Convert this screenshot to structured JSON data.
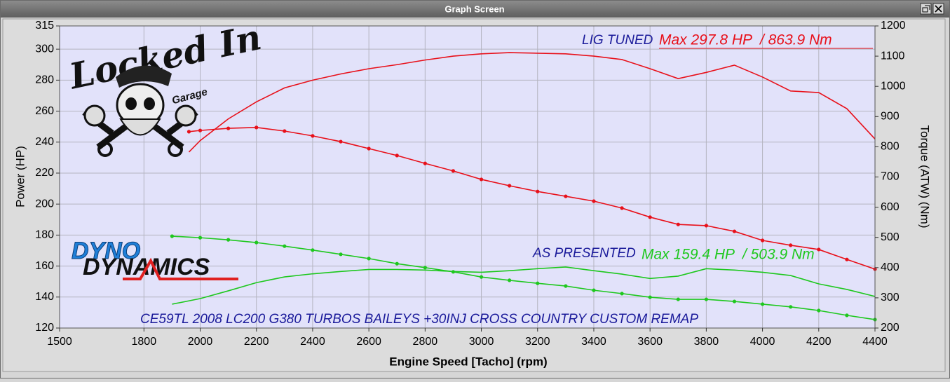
{
  "window": {
    "title": "Graph Screen"
  },
  "logos": {
    "brand": "Locked In",
    "brand_sub": "Garage",
    "dyno_top": "DYNO",
    "dyno_bottom": "DYNAMICS"
  },
  "chart_data": {
    "type": "line",
    "xlabel": "Engine Speed [Tacho] (rpm)",
    "ylabel": "Power (HP)",
    "y2label": "Torque (ATW) (Nm)",
    "xlim": [
      1500,
      4400
    ],
    "xticks": [
      1500,
      1800,
      2000,
      2200,
      2400,
      2600,
      2800,
      3000,
      3200,
      3400,
      3600,
      3800,
      4000,
      4200,
      4400
    ],
    "ylim": [
      120,
      315
    ],
    "yticks": [
      120,
      140,
      160,
      180,
      200,
      220,
      240,
      260,
      280,
      300,
      315
    ],
    "y2lim": [
      200,
      1200
    ],
    "y2ticks": [
      200,
      300,
      400,
      500,
      600,
      700,
      800,
      900,
      1000,
      1100,
      1200
    ],
    "grid": true,
    "series": [
      {
        "color": "#e8101a",
        "axis": "y",
        "markers": false,
        "x": [
          1960,
          2000,
          2100,
          2200,
          2300,
          2400,
          2500,
          2600,
          2700,
          2800,
          2900,
          3000,
          3100,
          3200,
          3300,
          3400,
          3500,
          3600,
          3700,
          3800,
          3900,
          4000,
          4100,
          4200,
          4300,
          4400
        ],
        "values": [
          233.6,
          241,
          255,
          266,
          275,
          280,
          284,
          287.4,
          290,
          293,
          295.5,
          297,
          297.8,
          297.4,
          297,
          295.5,
          293.3,
          287.4,
          281,
          285,
          289.7,
          282,
          273,
          272,
          261.6,
          242
        ]
      },
      {
        "color": "#e8101a",
        "axis": "y2",
        "markers": true,
        "x": [
          1960,
          2000,
          2100,
          2200,
          2300,
          2400,
          2500,
          2600,
          2700,
          2800,
          2900,
          3000,
          3100,
          3200,
          3300,
          3400,
          3500,
          3600,
          3700,
          3800,
          3900,
          4000,
          4100,
          4200,
          4300,
          4400
        ],
        "values": [
          850,
          854,
          861,
          863.9,
          852,
          836,
          817,
          794,
          771,
          745,
          720,
          692,
          671,
          652,
          636,
          620,
          597,
          567,
          543,
          539,
          520,
          490,
          474,
          460,
          427,
          395
        ]
      },
      {
        "color": "#1ec81e",
        "axis": "y",
        "markers": false,
        "x": [
          1900,
          2000,
          2100,
          2200,
          2300,
          2400,
          2500,
          2600,
          2700,
          2800,
          2900,
          3000,
          3100,
          3200,
          3300,
          3400,
          3500,
          3600,
          3700,
          3800,
          3900,
          4000,
          4100,
          4200,
          4300,
          4400
        ],
        "values": [
          135.4,
          139,
          144,
          149.3,
          153,
          155,
          156.5,
          157.8,
          157.8,
          157.4,
          156.5,
          156,
          157,
          158.3,
          159.4,
          157,
          154.8,
          152,
          153.5,
          158.3,
          157.4,
          156,
          153.9,
          148.5,
          144.9,
          140.4
        ]
      },
      {
        "color": "#1ec81e",
        "axis": "y2",
        "markers": true,
        "x": [
          1900,
          2000,
          2100,
          2200,
          2300,
          2400,
          2500,
          2600,
          2700,
          2800,
          2900,
          3000,
          3100,
          3200,
          3300,
          3400,
          3500,
          3600,
          3700,
          3800,
          3900,
          4000,
          4100,
          4200,
          4300,
          4400
        ],
        "values": [
          503.9,
          499,
          492,
          483,
          471,
          458,
          444,
          430,
          413,
          400,
          386,
          369,
          358,
          348,
          339,
          325,
          314,
          302,
          295,
          295,
          288,
          279,
          270,
          258,
          242,
          228
        ]
      }
    ],
    "annotations": [
      {
        "text": "LIG TUNED",
        "color": "#1a1a9a"
      },
      {
        "text": "Max 297.8 HP  / 863.9 Nm",
        "color": "#e8101a"
      },
      {
        "text": "AS PRESENTED",
        "color": "#1a1a9a"
      },
      {
        "text": "Max 159.4 HP  / 503.9 Nm",
        "color": "#1ec81e"
      },
      {
        "text": "CE59TL 2008 LC200 G380 TURBOS BAILEYS +30INJ CROSS COUNTRY CUSTOM REMAP",
        "color": "#1a1a9a"
      }
    ]
  }
}
